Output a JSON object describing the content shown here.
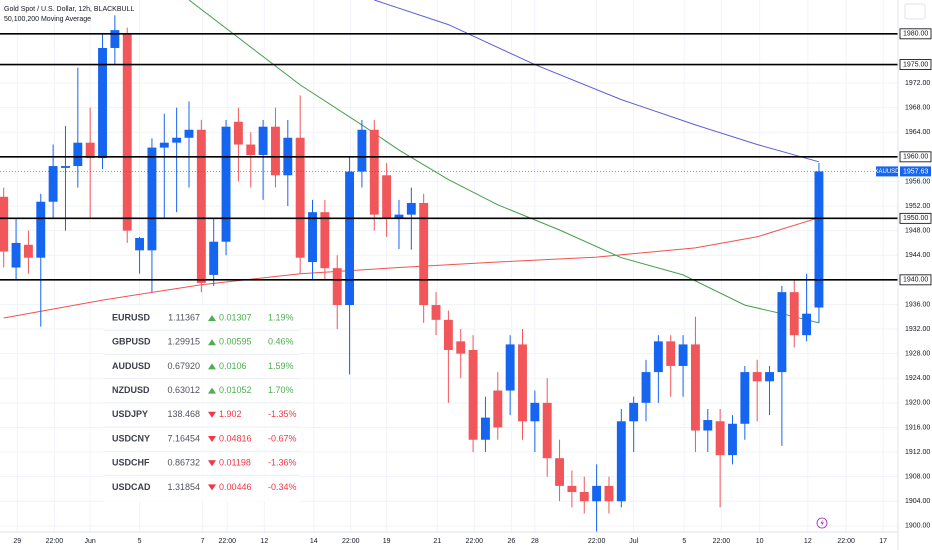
{
  "header": {
    "title": "Gold Spot / U.S. Dollar, 12h, BLACKBULL",
    "subtitle": "50,100,200 Moving Average"
  },
  "chart_data": {
    "type": "candlestick",
    "up_color": "#1565f0",
    "down_color": "#f0565a",
    "ylim": [
      1899,
      1985.5
    ],
    "xlim": [
      -0.3,
      72.4
    ],
    "yticks": [
      {
        "value": 1900,
        "label": "1900.00"
      },
      {
        "value": 1904,
        "label": "1904.00"
      },
      {
        "value": 1908,
        "label": "1908.00"
      },
      {
        "value": 1912,
        "label": "1912.00"
      },
      {
        "value": 1916,
        "label": "1916.00"
      },
      {
        "value": 1920,
        "label": "1920.00"
      },
      {
        "value": 1924,
        "label": "1924.00"
      },
      {
        "value": 1928,
        "label": "1928.00"
      },
      {
        "value": 1932,
        "label": "1932.00"
      },
      {
        "value": 1936,
        "label": "1936.00"
      },
      {
        "value": 1944,
        "label": "1944.00"
      },
      {
        "value": 1948,
        "label": "1948.00"
      },
      {
        "value": 1952,
        "label": "1952.00"
      },
      {
        "value": 1956,
        "label": "1956.00"
      },
      {
        "value": 1964,
        "label": "1964.00"
      },
      {
        "value": 1968,
        "label": "1968.00"
      },
      {
        "value": 1972,
        "label": "1972.00"
      }
    ],
    "levels": [
      {
        "value": 1980,
        "label": "1980.00"
      },
      {
        "value": 1975,
        "label": "1975.00"
      },
      {
        "value": 1960,
        "label": "1960.00"
      },
      {
        "value": 1950,
        "label": "1950.00"
      },
      {
        "value": 1940,
        "label": "1940.00"
      }
    ],
    "symbol": "XAUUSD",
    "xticks": [
      {
        "value": 1.1,
        "label": "29"
      },
      {
        "value": 4.1,
        "label": "22:00"
      },
      {
        "value": 7.0,
        "label": "Jun"
      },
      {
        "value": 11.0,
        "label": "5"
      },
      {
        "value": 16.1,
        "label": "7"
      },
      {
        "value": 18.1,
        "label": "22:00"
      },
      {
        "value": 21.1,
        "label": "12"
      },
      {
        "value": 25.1,
        "label": "14"
      },
      {
        "value": 28.1,
        "label": "22:00"
      },
      {
        "value": 31.0,
        "label": "19"
      },
      {
        "value": 35.1,
        "label": "21"
      },
      {
        "value": 38.1,
        "label": "22:00"
      },
      {
        "value": 41.1,
        "label": "26"
      },
      {
        "value": 43.0,
        "label": "28"
      },
      {
        "value": 48.0,
        "label": "22:00"
      },
      {
        "value": 51.0,
        "label": "Jul"
      },
      {
        "value": 55.1,
        "label": "5"
      },
      {
        "value": 58.1,
        "label": "22:00"
      },
      {
        "value": 61.2,
        "label": "10"
      },
      {
        "value": 65.1,
        "label": "12"
      },
      {
        "value": 68.2,
        "label": "22:00"
      },
      {
        "value": 71.2,
        "label": "17"
      }
    ],
    "candles": [
      {
        "open": 1953.5,
        "high": 1955,
        "low": 1942,
        "close": 1944.6
      },
      {
        "open": 1942,
        "high": 1950,
        "low": 1940,
        "close": 1946
      },
      {
        "open": 1945.7,
        "high": 1948,
        "low": 1941,
        "close": 1943.6
      },
      {
        "open": 1943.6,
        "high": 1954,
        "low": 1932.4,
        "close": 1952.7
      },
      {
        "open": 1952.7,
        "high": 1962,
        "low": 1950,
        "close": 1958.5
      },
      {
        "open": 1958.2,
        "high": 1965,
        "low": 1948,
        "close": 1958.5
      },
      {
        "open": 1958.5,
        "high": 1974.5,
        "low": 1955,
        "close": 1962.3
      },
      {
        "open": 1962.3,
        "high": 1968,
        "low": 1950,
        "close": 1959.8
      },
      {
        "open": 1959.8,
        "high": 1980,
        "low": 1958,
        "close": 1977.7
      },
      {
        "open": 1977.7,
        "high": 1983,
        "low": 1975,
        "close": 1980.6
      },
      {
        "open": 1980,
        "high": 1981,
        "low": 1946,
        "close": 1948
      },
      {
        "open": 1944.8,
        "high": 1947,
        "low": 1941,
        "close": 1946.8
      },
      {
        "open": 1944.8,
        "high": 1963,
        "low": 1938,
        "close": 1961.5
      },
      {
        "open": 1961.5,
        "high": 1967,
        "low": 1950,
        "close": 1962.3
      },
      {
        "open": 1962.3,
        "high": 1968,
        "low": 1951,
        "close": 1963.1
      },
      {
        "open": 1963.1,
        "high": 1969,
        "low": 1955,
        "close": 1964.4
      },
      {
        "open": 1964.4,
        "high": 1966,
        "low": 1938,
        "close": 1939.5
      },
      {
        "open": 1940.8,
        "high": 1950,
        "low": 1939,
        "close": 1946.2
      },
      {
        "open": 1946.2,
        "high": 1966,
        "low": 1944,
        "close": 1964.9
      },
      {
        "open": 1965.7,
        "high": 1968,
        "low": 1956,
        "close": 1962
      },
      {
        "open": 1962,
        "high": 1964,
        "low": 1955,
        "close": 1960.3
      },
      {
        "open": 1960.3,
        "high": 1966,
        "low": 1953,
        "close": 1964.9
      },
      {
        "open": 1964.9,
        "high": 1968,
        "low": 1955,
        "close": 1957
      },
      {
        "open": 1957,
        "high": 1966,
        "low": 1952,
        "close": 1963.1
      },
      {
        "open": 1963.1,
        "high": 1970,
        "low": 1941,
        "close": 1943.6
      },
      {
        "open": 1942.9,
        "high": 1953,
        "low": 1940,
        "close": 1951
      },
      {
        "open": 1951,
        "high": 1953,
        "low": 1940,
        "close": 1941.9
      },
      {
        "open": 1941.9,
        "high": 1944,
        "low": 1932,
        "close": 1935.9
      },
      {
        "open": 1935.9,
        "high": 1960,
        "low": 1924.6,
        "close": 1957.6
      },
      {
        "open": 1957.6,
        "high": 1966,
        "low": 1955,
        "close": 1964.4
      },
      {
        "open": 1964.4,
        "high": 1966,
        "low": 1948,
        "close": 1950.6
      },
      {
        "open": 1957,
        "high": 1959,
        "low": 1947,
        "close": 1950
      },
      {
        "open": 1950,
        "high": 1953,
        "low": 1945,
        "close": 1950.6
      },
      {
        "open": 1950.6,
        "high": 1955,
        "low": 1944.9,
        "close": 1952.5
      },
      {
        "open": 1952.5,
        "high": 1954,
        "low": 1933,
        "close": 1935.9
      },
      {
        "open": 1935.9,
        "high": 1938,
        "low": 1931,
        "close": 1933.5
      },
      {
        "open": 1933.5,
        "high": 1935,
        "low": 1920,
        "close": 1928.6
      },
      {
        "open": 1930,
        "high": 1932,
        "low": 1924,
        "close": 1928
      },
      {
        "open": 1928.6,
        "high": 1931,
        "low": 1912,
        "close": 1914
      },
      {
        "open": 1914,
        "high": 1921,
        "low": 1912,
        "close": 1917.6
      },
      {
        "open": 1922,
        "high": 1925,
        "low": 1914,
        "close": 1916
      },
      {
        "open": 1922,
        "high": 1931,
        "low": 1918,
        "close": 1929.5
      },
      {
        "open": 1929.5,
        "high": 1932,
        "low": 1914,
        "close": 1917
      },
      {
        "open": 1917,
        "high": 1922,
        "low": 1912,
        "close": 1920
      },
      {
        "open": 1920,
        "high": 1924,
        "low": 1908,
        "close": 1911
      },
      {
        "open": 1911,
        "high": 1914,
        "low": 1904,
        "close": 1906.5
      },
      {
        "open": 1906.5,
        "high": 1909,
        "low": 1903,
        "close": 1905.5
      },
      {
        "open": 1905.5,
        "high": 1908,
        "low": 1902,
        "close": 1904
      },
      {
        "open": 1904,
        "high": 1910,
        "low": 1899,
        "close": 1906.5
      },
      {
        "open": 1906.5,
        "high": 1908,
        "low": 1902,
        "close": 1904
      },
      {
        "open": 1904,
        "high": 1919,
        "low": 1903,
        "close": 1917
      },
      {
        "open": 1917,
        "high": 1921,
        "low": 1912,
        "close": 1920
      },
      {
        "open": 1920,
        "high": 1927,
        "low": 1917,
        "close": 1925
      },
      {
        "open": 1925,
        "high": 1931,
        "low": 1920,
        "close": 1930
      },
      {
        "open": 1930,
        "high": 1931,
        "low": 1921,
        "close": 1926
      },
      {
        "open": 1926,
        "high": 1931,
        "low": 1921,
        "close": 1929.5
      },
      {
        "open": 1929.5,
        "high": 1934,
        "low": 1912,
        "close": 1915.5
      },
      {
        "open": 1915.5,
        "high": 1919,
        "low": 1912,
        "close": 1917.2
      },
      {
        "open": 1917,
        "high": 1919,
        "low": 1903,
        "close": 1911.5
      },
      {
        "open": 1911.5,
        "high": 1918,
        "low": 1910,
        "close": 1916.6
      },
      {
        "open": 1916.6,
        "high": 1926,
        "low": 1914,
        "close": 1925
      },
      {
        "open": 1925,
        "high": 1927,
        "low": 1917,
        "close": 1923.5
      },
      {
        "open": 1923.5,
        "high": 1926,
        "low": 1918,
        "close": 1925
      },
      {
        "open": 1925,
        "high": 1939,
        "low": 1913,
        "close": 1938
      },
      {
        "open": 1938,
        "high": 1940,
        "low": 1929,
        "close": 1931
      },
      {
        "open": 1931,
        "high": 1941,
        "low": 1930,
        "close": 1934.5
      },
      {
        "open": 1935.5,
        "high": 1959,
        "low": 1933,
        "close": 1957.63
      }
    ],
    "series": [
      {
        "color": "#43a047",
        "x": [
          15,
          24,
          29,
          32,
          36,
          40,
          45,
          50,
          55,
          60,
          63,
          66
        ],
        "values": [
          1985.5,
          1971.7,
          1965.2,
          1961.1,
          1956.3,
          1952.2,
          1948.1,
          1943.6,
          1940.8,
          1935.9,
          1934.5,
          1933
        ]
      },
      {
        "color": "#5b5fd6",
        "x": [
          30,
          36,
          43,
          50,
          56,
          61,
          66
        ],
        "values": [
          1985.5,
          1981.5,
          1975,
          1969.3,
          1965.2,
          1962,
          1959.2
        ]
      },
      {
        "color": "#ef5350",
        "x": [
          0,
          8,
          16,
          24,
          32,
          40,
          48,
          56,
          61,
          66
        ],
        "values": [
          1933.8,
          1936.7,
          1939.2,
          1941,
          1942,
          1942.9,
          1943.7,
          1945.2,
          1947,
          1950.1
        ]
      }
    ]
  },
  "watchlist": {
    "rows": [
      [
        "EURUSD",
        "1.11367",
        "0.01307",
        "1.19%"
      ],
      [
        "GBPUSD",
        "1.29915",
        "0.00595",
        "0.46%"
      ],
      [
        "AUDUSD",
        "0.67920",
        "0.0106",
        "1.59%"
      ],
      [
        "NZDUSD",
        "0.63012",
        "0.01052",
        "1.70%"
      ],
      [
        "USDJPY",
        "138.468",
        "1.902",
        "-1.35%"
      ],
      [
        "USDCNY",
        "7.16454",
        "0.04816",
        "-0.67%"
      ],
      [
        "USDCHF",
        "0.86732",
        "0.01198",
        "-1.36%"
      ],
      [
        "USDCAD",
        "1.31854",
        "0.00446",
        "-0.34%"
      ]
    ]
  }
}
